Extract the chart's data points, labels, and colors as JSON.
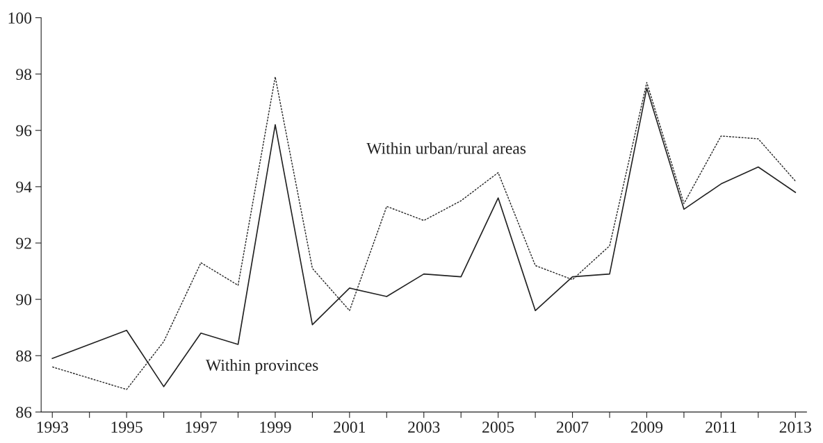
{
  "chart_data": {
    "type": "line",
    "x": [
      1993,
      1995,
      1996,
      1997,
      1998,
      1999,
      2000,
      2001,
      2002,
      2003,
      2004,
      2005,
      2006,
      2007,
      2008,
      2009,
      2010,
      2011,
      2012,
      2013
    ],
    "series": [
      {
        "name": "Within provinces",
        "color": "#222222",
        "line_style": "solid",
        "values": [
          87.9,
          88.9,
          86.9,
          88.8,
          88.4,
          96.2,
          89.1,
          90.4,
          90.1,
          90.9,
          90.8,
          93.6,
          89.6,
          90.8,
          90.9,
          97.5,
          93.2,
          94.1,
          94.7,
          93.8
        ]
      },
      {
        "name": "Within urban/rural areas",
        "color": "#222222",
        "line_style": "dotted",
        "values": [
          87.6,
          86.8,
          88.5,
          91.3,
          90.5,
          97.9,
          91.1,
          89.6,
          93.3,
          92.8,
          93.5,
          94.5,
          91.2,
          90.7,
          91.9,
          97.7,
          93.4,
          95.8,
          95.7,
          94.2
        ]
      }
    ],
    "xlim": [
      1992.7,
      2013.3
    ],
    "xticks": [
      1993,
      {
        "value": 1994,
        "label": null
      },
      1995,
      {
        "value": 1996,
        "label": null
      },
      1997,
      {
        "value": 1998,
        "label": null
      },
      1999,
      {
        "value": 2000,
        "label": null
      },
      2001,
      {
        "value": 2002,
        "label": null
      },
      2003,
      {
        "value": 2004,
        "label": null
      },
      2005,
      {
        "value": 2006,
        "label": null
      },
      2007,
      {
        "value": 2008,
        "label": null
      },
      2009,
      {
        "value": 2010,
        "label": null
      },
      2011,
      {
        "value": 2012,
        "label": null
      },
      2013
    ],
    "ylim": [
      86,
      100
    ],
    "yticks": [
      86,
      88,
      90,
      92,
      94,
      96,
      98,
      100
    ],
    "grid": false,
    "legend": false
  }
}
